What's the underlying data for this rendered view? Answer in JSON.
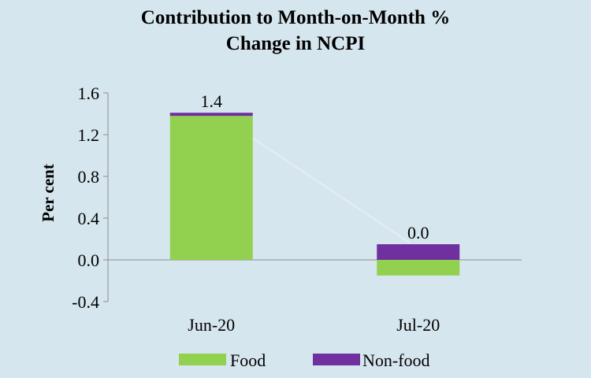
{
  "chart_data": {
    "type": "bar",
    "stacked": true,
    "title": [
      "Contribution to Month-on-Month %",
      "Change in NCPI"
    ],
    "xlabel": "",
    "ylabel": "Per cent",
    "ylim": [
      -0.4,
      1.6
    ],
    "yticks": [
      "1.6",
      "1.2",
      "0.8",
      "0.4",
      "0.0",
      "-0.4"
    ],
    "categories": [
      "Jun-20",
      "Jul-20"
    ],
    "series": [
      {
        "name": "Food",
        "color": "#92d050",
        "values": [
          1.38,
          -0.15
        ]
      },
      {
        "name": "Non-food",
        "color": "#7030a0",
        "values": [
          0.03,
          0.15
        ]
      }
    ],
    "totals": [
      "1.4",
      "0.0"
    ],
    "legend_position": "bottom",
    "grid": false
  }
}
